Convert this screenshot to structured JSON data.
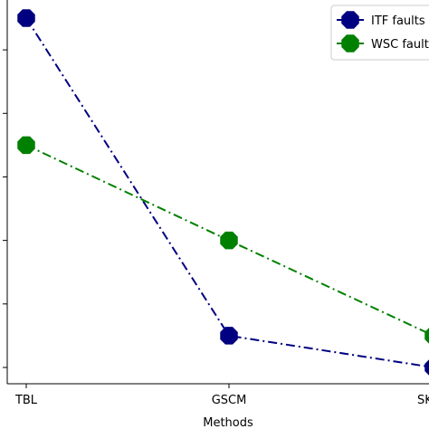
{
  "chart_data": {
    "type": "line",
    "categories": [
      "TBL",
      "GSCM",
      "SKI_A"
    ],
    "xlabel": "Methods",
    "ylabel": "",
    "ylim": [
      0,
      5.5
    ],
    "y_ticks": [
      0,
      1,
      2,
      3,
      4,
      5
    ],
    "grid": false,
    "legend": "top-right",
    "series": [
      {
        "name": "ITF faults",
        "values": [
          5.5,
          0.5,
          0
        ],
        "color": "#000080",
        "marker": "octagon",
        "linestyle": "dash-dot"
      },
      {
        "name": "WSC faults",
        "values": [
          3.5,
          2.0,
          0.5
        ],
        "color": "#008000",
        "marker": "octagon",
        "linestyle": "dash-dot"
      }
    ]
  }
}
